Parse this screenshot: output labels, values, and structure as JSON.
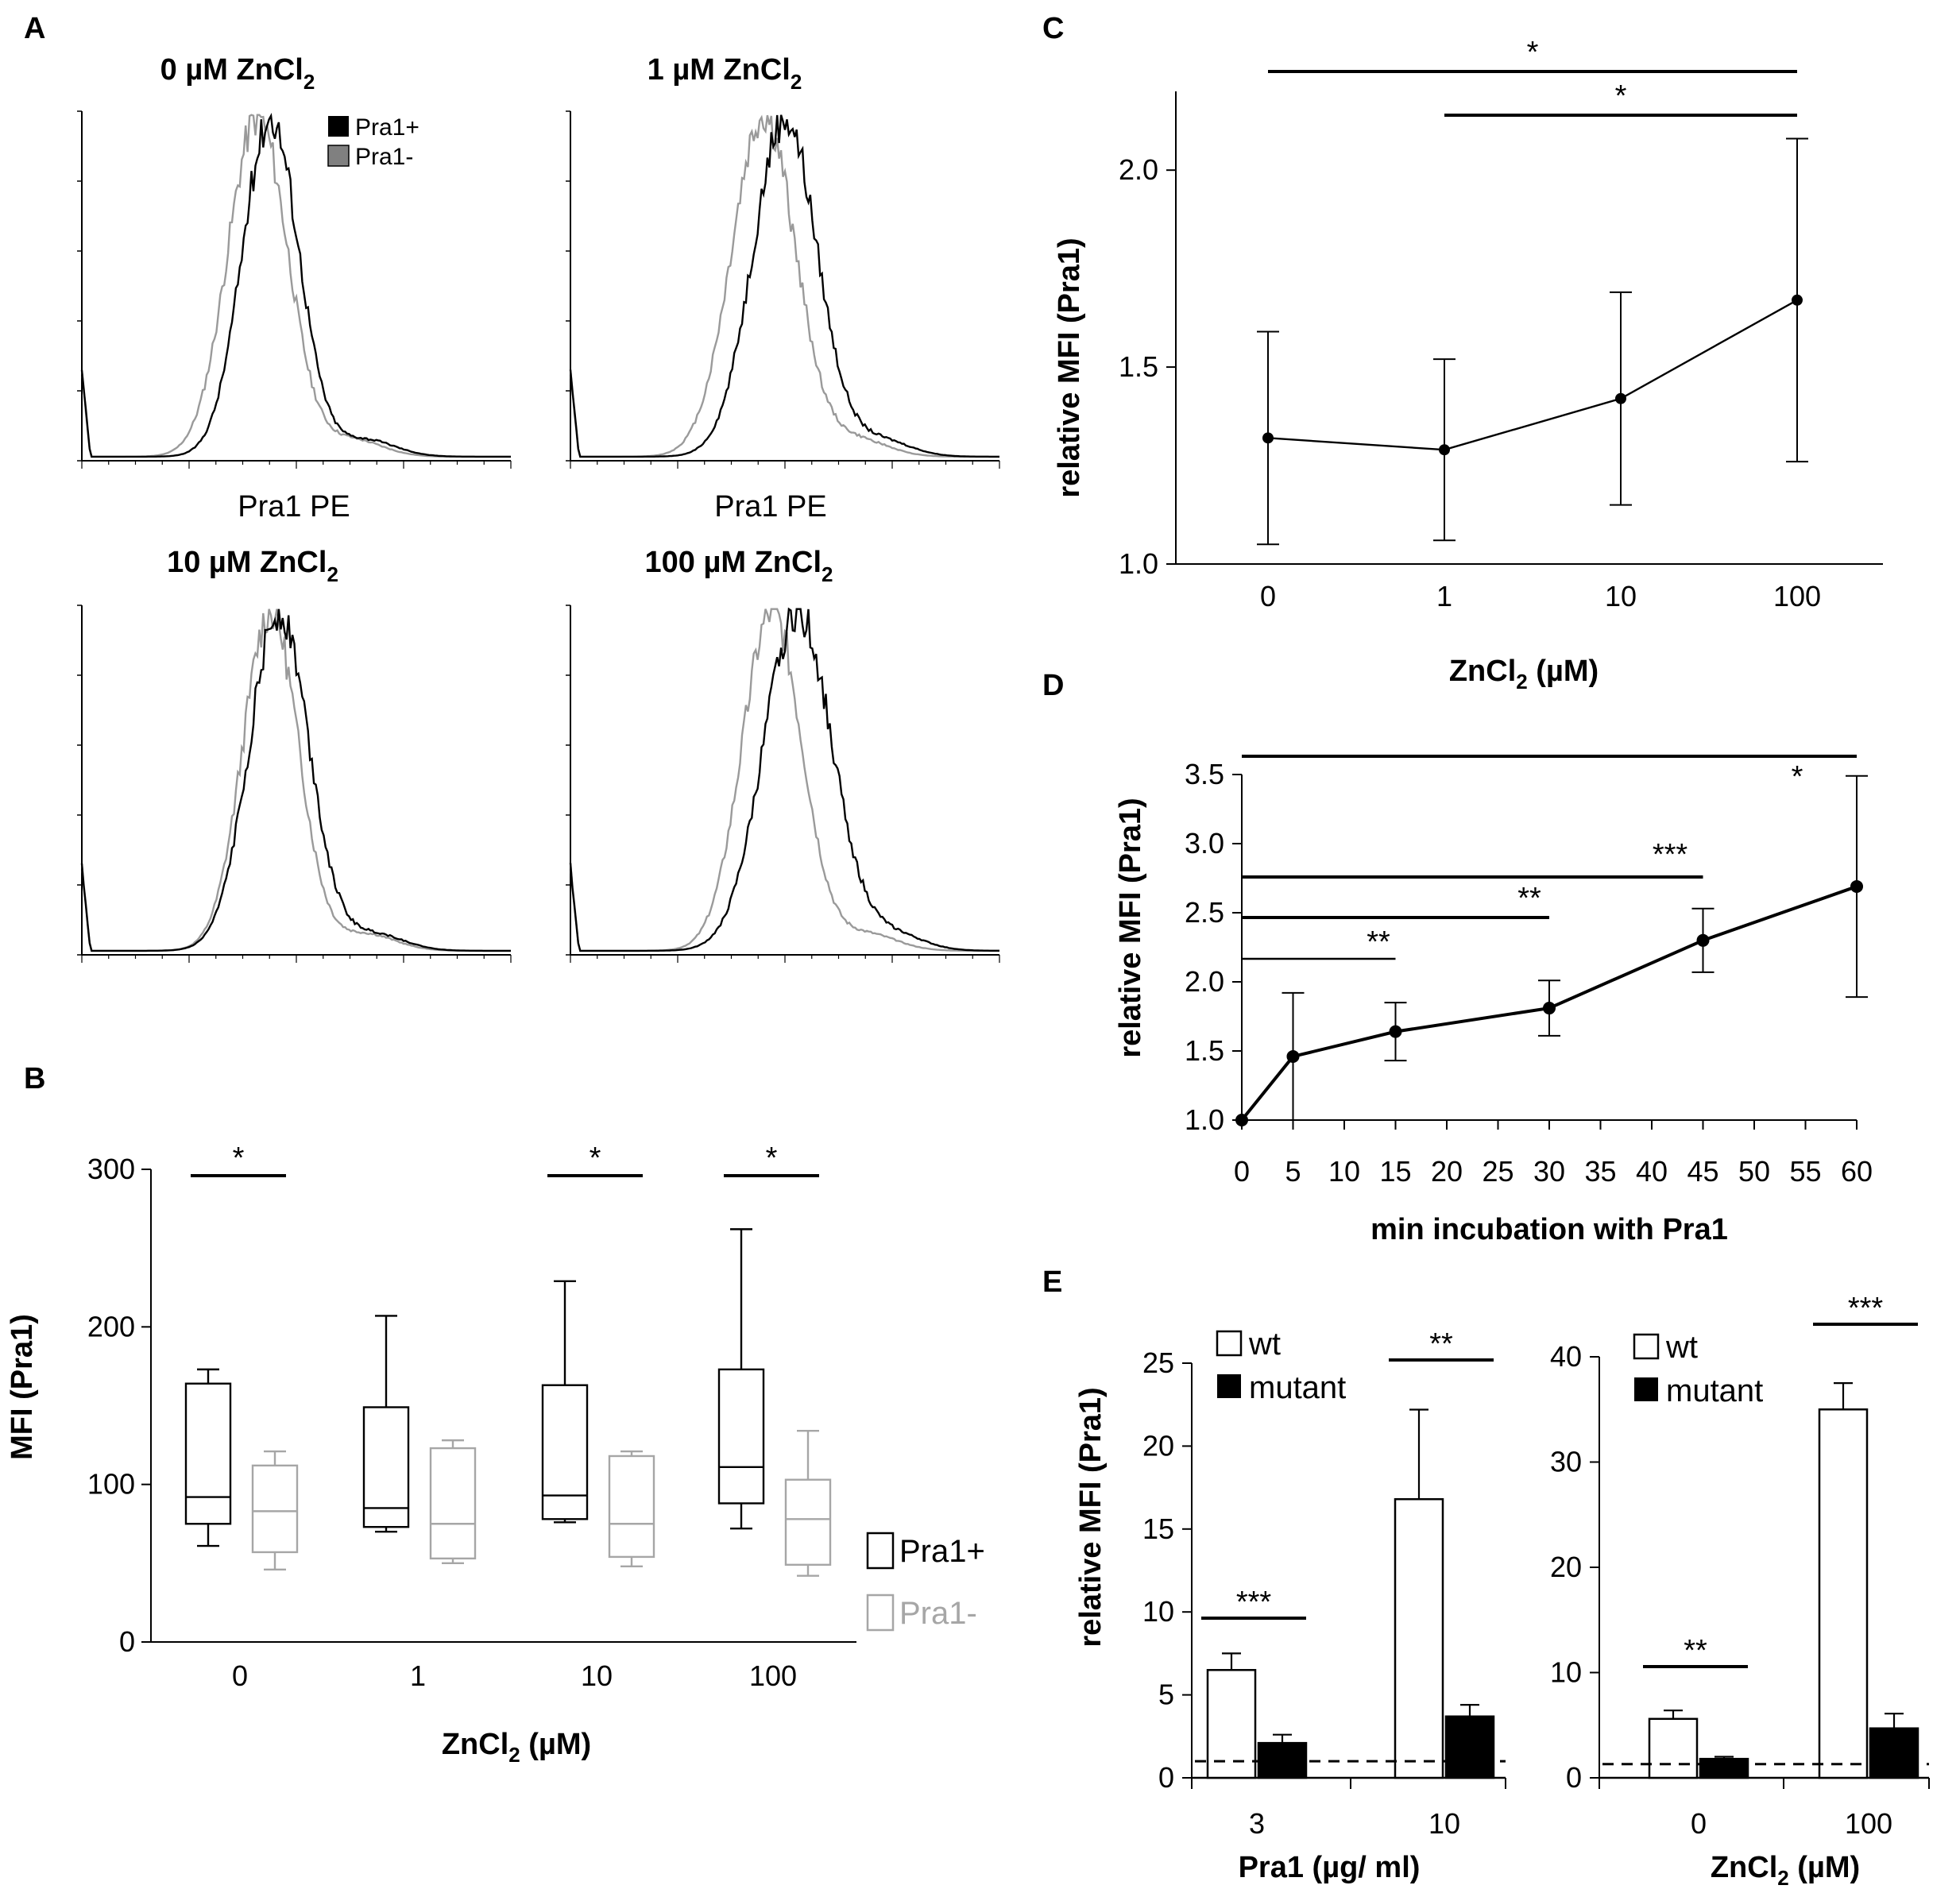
{
  "panels": {
    "A": "A",
    "B": "B",
    "C": "C",
    "D": "D",
    "E": "E"
  },
  "chart_data": [
    {
      "id": "A",
      "type": "line",
      "description_type": "histogram",
      "xlabel": "Pra1 PE",
      "legend": [
        {
          "name": "Pra1+",
          "color": "#000000"
        },
        {
          "name": "Pra1-",
          "color": "#808080"
        }
      ],
      "subplots": [
        {
          "title_prefix": "0 µM ZnCl",
          "title_sub": "2",
          "xlabel": "Pra1 PE",
          "pos_peak": 0.44,
          "pos_width": 0.066,
          "neg_peak": 0.41,
          "neg_width": 0.07
        },
        {
          "title_prefix": "1 µM ZnCl",
          "title_sub": "2",
          "xlabel": "Pra1 PE",
          "pos_peak": 0.5,
          "pos_width": 0.075,
          "neg_peak": 0.45,
          "neg_width": 0.075
        },
        {
          "title_prefix": "10 µM ZnCl",
          "title_sub": "2",
          "pos_peak": 0.46,
          "pos_width": 0.07,
          "neg_peak": 0.44,
          "neg_width": 0.065
        },
        {
          "title_prefix": "100 µM ZnCl",
          "title_sub": "2",
          "pos_peak": 0.53,
          "pos_width": 0.08,
          "neg_peak": 0.47,
          "neg_width": 0.07
        }
      ]
    },
    {
      "id": "B",
      "type": "box",
      "categories": [
        "0",
        "1",
        "10",
        "100"
      ],
      "ylabel": "MFI (Pra1)",
      "xlabel_prefix": "ZnCl",
      "xlabel_sub": "2",
      "xlabel_suffix": " (µM)",
      "ylim": [
        0,
        300
      ],
      "yticks": [
        0,
        100,
        200,
        300
      ],
      "series": [
        {
          "name": "Pra1+",
          "color": "#000000",
          "boxes": [
            {
              "min": 61,
              "q1": 75,
              "median": 92,
              "q3": 164,
              "max": 173
            },
            {
              "min": 70,
              "q1": 73,
              "median": 85,
              "q3": 149,
              "max": 207
            },
            {
              "min": 76,
              "q1": 78,
              "median": 93,
              "q3": 163,
              "max": 229
            },
            {
              "min": 72,
              "q1": 88,
              "median": 111,
              "q3": 173,
              "max": 262
            }
          ]
        },
        {
          "name": "Pra1-",
          "color": "#a6a6a6",
          "boxes": [
            {
              "min": 46,
              "q1": 57,
              "median": 83,
              "q3": 112,
              "max": 121
            },
            {
              "min": 50,
              "q1": 53,
              "median": 75,
              "q3": 123,
              "max": 128
            },
            {
              "min": 48,
              "q1": 54,
              "median": 75,
              "q3": 118,
              "max": 121
            },
            {
              "min": 42,
              "q1": 49,
              "median": 78,
              "q3": 103,
              "max": 134
            }
          ]
        }
      ],
      "significance": [
        {
          "category": "0",
          "label": "*"
        },
        {
          "category": "10",
          "label": "*"
        },
        {
          "category": "100",
          "label": "*"
        }
      ]
    },
    {
      "id": "C",
      "type": "line",
      "categories": [
        "0",
        "1",
        "10",
        "100"
      ],
      "values": [
        1.32,
        1.29,
        1.42,
        1.67
      ],
      "errors": [
        0.27,
        0.23,
        0.27,
        0.41
      ],
      "ylabel": "relative MFI (Pra1)",
      "xlabel_prefix": "ZnCl",
      "xlabel_sub": "2",
      "xlabel_suffix": " (µM)",
      "ylim": [
        1.0,
        2.2
      ],
      "yticks": [
        "1.0",
        "1.5",
        "2.0"
      ],
      "significance": [
        {
          "from": "0",
          "to": "100",
          "label": "*"
        },
        {
          "from": "1",
          "to": "100",
          "label": "*"
        }
      ]
    },
    {
      "id": "D",
      "type": "line",
      "x": [
        0,
        5,
        15,
        30,
        45,
        60
      ],
      "values": [
        1.0,
        1.46,
        1.64,
        1.81,
        2.3,
        2.69
      ],
      "errors": [
        0.0,
        0.46,
        0.21,
        0.2,
        0.23,
        0.8
      ],
      "ylabel": "relative MFI (Pra1)",
      "xlabel": "min incubation with Pra1",
      "xlim": [
        0,
        60
      ],
      "xticks": [
        "0",
        "5",
        "10",
        "15",
        "20",
        "25",
        "30",
        "35",
        "40",
        "45",
        "50",
        "55",
        "60"
      ],
      "ylim": [
        1.0,
        3.5
      ],
      "yticks": [
        "1.0",
        "1.5",
        "2.0",
        "2.5",
        "3.0",
        "3.5"
      ],
      "significance": [
        {
          "from": 0,
          "to": 60,
          "label": "*"
        },
        {
          "from": 0,
          "to": 45,
          "label": "***"
        },
        {
          "from": 0,
          "to": 30,
          "label": "**"
        },
        {
          "from": 0,
          "to": 15,
          "label": "**"
        }
      ]
    },
    {
      "id": "E1",
      "type": "bar",
      "categories": [
        "3",
        "10"
      ],
      "series": [
        {
          "name": "wt",
          "color": "#ffffff",
          "values": [
            6.5,
            16.8
          ],
          "errors": [
            1.0,
            5.4
          ]
        },
        {
          "name": "mutant",
          "color": "#000000",
          "values": [
            2.1,
            3.7
          ],
          "errors": [
            0.5,
            0.7
          ]
        }
      ],
      "ylabel": "relative MFI (Pra1)",
      "xlabel": "Pra1 (µg/ ml)",
      "ylim": [
        0,
        25
      ],
      "yticks": [
        "0",
        "5",
        "10",
        "15",
        "20",
        "25"
      ],
      "baseline": 1,
      "significance": [
        {
          "category": "3",
          "label": "***"
        },
        {
          "category": "10",
          "label": "**"
        }
      ]
    },
    {
      "id": "E2",
      "type": "bar",
      "categories": [
        "0",
        "100"
      ],
      "series": [
        {
          "name": "wt",
          "color": "#ffffff",
          "values": [
            5.6,
            35.0
          ],
          "errors": [
            0.8,
            2.5
          ]
        },
        {
          "name": "mutant",
          "color": "#000000",
          "values": [
            1.8,
            4.7
          ],
          "errors": [
            0.2,
            1.4
          ]
        }
      ],
      "xlabel_prefix": "ZnCl",
      "xlabel_sub": "2",
      "xlabel_suffix": " (µM)",
      "ylim": [
        0,
        40
      ],
      "yticks": [
        "0",
        "10",
        "20",
        "30",
        "40"
      ],
      "baseline": 1.3,
      "significance": [
        {
          "category": "0",
          "label": "**"
        },
        {
          "category": "100",
          "label": "***"
        }
      ]
    }
  ]
}
